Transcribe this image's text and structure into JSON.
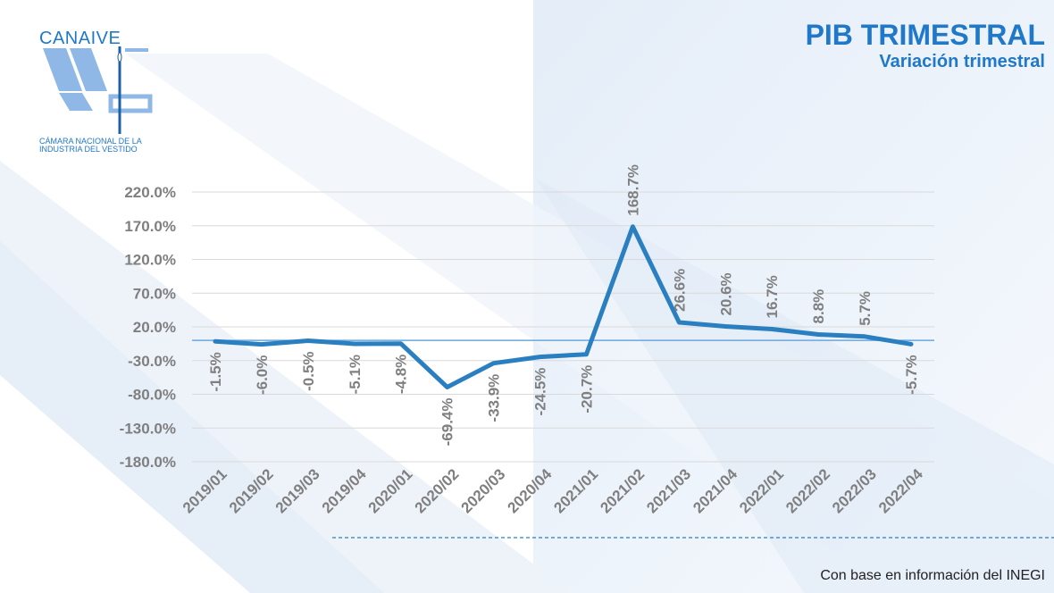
{
  "header": {
    "title": "PIB TRIMESTRAL",
    "subtitle": "Variación trimestral"
  },
  "logo": {
    "name": "CANAIVE",
    "subtitle_line1": "CÁMARA NACIONAL DE LA",
    "subtitle_line2": "INDUSTRIA DEL VESTIDO"
  },
  "footer": {
    "source": "Con base en información del INEGI"
  },
  "colors": {
    "line": "#2a7fc0",
    "accent": "#1f78c8",
    "label": "#7f7f7f",
    "grid": "#d9d9d9",
    "zero_line": "#6aa7de"
  },
  "chart_data": {
    "type": "line",
    "title": "",
    "xlabel": "",
    "ylabel": "",
    "categories": [
      "2019/01",
      "2019/02",
      "2019/03",
      "2019/04",
      "2020/01",
      "2020/02",
      "2020/03",
      "2020/04",
      "2021/01",
      "2021/02",
      "2021/03",
      "2021/04",
      "2022/01",
      "2022/02",
      "2022/03",
      "2022/04"
    ],
    "values": [
      -1.5,
      -6.0,
      -0.5,
      -5.1,
      -4.8,
      -69.4,
      -33.9,
      -24.5,
      -20.7,
      168.7,
      26.6,
      20.6,
      16.7,
      8.8,
      5.7,
      -5.7
    ],
    "data_labels": [
      "-1.5%",
      "-6.0%",
      "-0.5%",
      "-5.1%",
      "-4.8%",
      "-69.4%",
      "-33.9%",
      "-24.5%",
      "-20.7%",
      "168.7%",
      "26.6%",
      "20.6%",
      "16.7%",
      "8.8%",
      "5.7%",
      "-5.7%"
    ],
    "y_ticks": [
      220,
      170,
      120,
      70,
      20,
      -30,
      -80,
      -130,
      -180
    ],
    "y_tick_labels": [
      "220.0%",
      "170.0%",
      "120.0%",
      "70.0%",
      "20.0%",
      "-30.0%",
      "-80.0%",
      "-130.0%",
      "-180.0%"
    ],
    "ylim": [
      -180,
      220
    ],
    "grid": true,
    "legend": "none"
  }
}
